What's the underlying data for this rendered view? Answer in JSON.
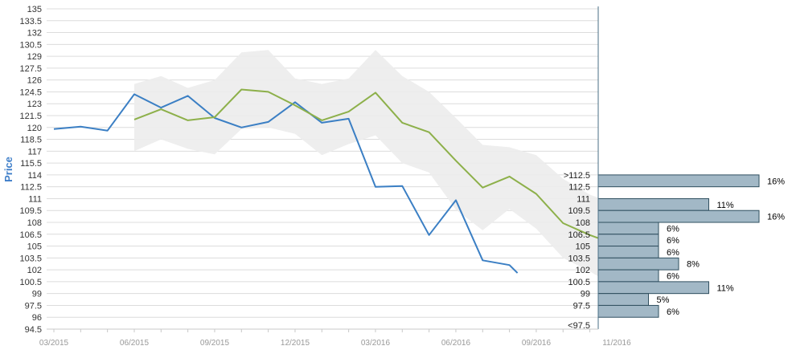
{
  "chart_data": {
    "type": "line",
    "ylabel": "Price",
    "ylim": [
      94.5,
      135
    ],
    "y_ticks": [
      "94.5",
      "96",
      "97.5",
      "99",
      "100.5",
      "102",
      "103.5",
      "105",
      "106.5",
      "108",
      "109.5",
      "111",
      "112.5",
      "114",
      "115.5",
      "117",
      "118.5",
      "120",
      "121.5",
      "123",
      "124.5",
      "126",
      "127.5",
      "129",
      "130.5",
      "132",
      "133.5",
      "135"
    ],
    "x_ticks": [
      "03/2015",
      "06/2015",
      "09/2015",
      "12/2015",
      "03/2016",
      "06/2016",
      "09/2016",
      "11/2016"
    ],
    "x_tick_index": [
      0,
      3,
      6,
      9,
      12,
      15,
      18,
      21
    ],
    "xlim": [
      0,
      20.4
    ],
    "grid": true,
    "series": [
      {
        "role": "actual",
        "color": "#3b7fc4",
        "x": [
          0,
          1,
          2,
          3,
          4,
          5,
          6,
          7,
          8,
          9,
          10,
          11,
          12,
          13,
          14,
          15,
          16,
          17,
          17.3
        ],
        "values": [
          119.8,
          120.1,
          119.6,
          124.2,
          122.5,
          124.0,
          121.2,
          120.0,
          120.7,
          123.2,
          120.6,
          121.1,
          112.5,
          112.6,
          106.4,
          110.8,
          103.2,
          102.6,
          101.6
        ]
      },
      {
        "role": "forecast",
        "color": "#8db04a",
        "x": [
          3,
          4,
          5,
          6,
          7,
          8,
          9,
          10,
          11,
          12,
          13,
          14,
          15,
          16,
          17,
          18,
          19,
          20,
          20.4
        ],
        "values": [
          121.0,
          122.3,
          120.9,
          121.3,
          124.8,
          124.5,
          122.8,
          120.9,
          122.0,
          124.4,
          120.6,
          119.4,
          115.8,
          112.4,
          113.8,
          111.6,
          107.9,
          106.4,
          105.9
        ]
      }
    ],
    "band": {
      "color": "#ececec",
      "x": [
        3,
        4,
        5,
        6,
        7,
        8,
        9,
        10,
        11,
        12,
        13,
        14,
        15,
        16,
        17,
        18,
        19,
        20,
        20.4
      ],
      "upper": [
        125.5,
        126.5,
        125.0,
        126.0,
        129.5,
        129.8,
        126.2,
        125.5,
        126.2,
        129.8,
        126.5,
        124.5,
        121.2,
        117.8,
        117.5,
        116.5,
        113.5,
        111.5,
        111.0
      ],
      "lower": [
        117.0,
        118.5,
        117.3,
        116.6,
        119.8,
        120.0,
        119.2,
        116.5,
        117.9,
        119.0,
        115.5,
        114.3,
        109.6,
        107.0,
        109.7,
        107.2,
        103.5,
        101.8,
        101.0
      ]
    },
    "distribution": [
      {
        "label": ">112.5",
        "low": 112.5,
        "high": 114,
        "pct": 16,
        "pct_label": "16%"
      },
      {
        "label": "111",
        "low": 109.5,
        "high": 111,
        "pct": 11,
        "pct_label": "11%"
      },
      {
        "label": "",
        "low": 108,
        "high": 109.5,
        "pct": 16,
        "pct_label": "16%"
      },
      {
        "label": "",
        "low": 106.5,
        "high": 108,
        "pct": 6,
        "pct_label": "6%"
      },
      {
        "label": "",
        "low": 105,
        "high": 106.5,
        "pct": 6,
        "pct_label": "6%"
      },
      {
        "label": "",
        "low": 103.5,
        "high": 105,
        "pct": 6,
        "pct_label": "6%"
      },
      {
        "label": "",
        "low": 102,
        "high": 103.5,
        "pct": 8,
        "pct_label": "8%"
      },
      {
        "label": "",
        "low": 100.5,
        "high": 102,
        "pct": 6,
        "pct_label": "6%"
      },
      {
        "label": "",
        "low": 99,
        "high": 100.5,
        "pct": 11,
        "pct_label": "11%"
      },
      {
        "label": "",
        "low": 97.5,
        "high": 99,
        "pct": 5,
        "pct_label": "5%"
      },
      {
        "label": "",
        "low": 96,
        "high": 97.5,
        "pct": 6,
        "pct_label": "6%"
      }
    ],
    "distribution_labels": [
      "112.5",
      "109.5",
      "108",
      "106.5",
      "105",
      "103.5",
      "102",
      "100.5",
      "99",
      "97.5",
      "<97.5"
    ],
    "bar_color": "#a2b8c6",
    "bar_border": "#2f4f5f"
  }
}
